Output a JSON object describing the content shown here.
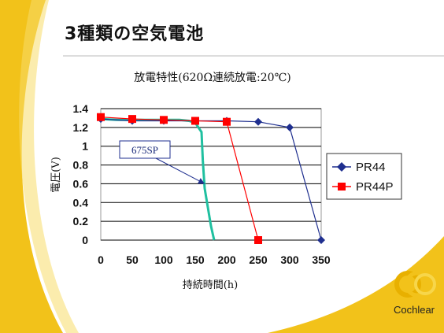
{
  "slide": {
    "title": "3種類の空気電池",
    "logo_text": "Cochlear"
  },
  "colors": {
    "accent_yellow": "#f2c21a",
    "pr44": "#1f2f8f",
    "pr44p": "#ff0000",
    "sp675": "#20c0a0",
    "callout_border": "#1f2f8f"
  },
  "chart_data": {
    "type": "line",
    "title": "放電特性(620Ω連続放電:20℃)",
    "xlabel": "持続時間(h)",
    "ylabel": "電圧(V)",
    "xlim": [
      0,
      350
    ],
    "ylim": [
      0,
      1.4
    ],
    "x_ticks": [
      "0",
      "50",
      "100",
      "150",
      "200",
      "250",
      "300",
      "350"
    ],
    "y_ticks": [
      "1.4",
      "1.2",
      "1",
      "0.8",
      "0.6",
      "0.4",
      "0.2",
      "0"
    ],
    "grid": true,
    "legend_position": "right",
    "series": [
      {
        "name": "PR44",
        "marker": "diamond",
        "color": "#1f2f8f",
        "x": [
          0,
          50,
          100,
          150,
          200,
          250,
          300,
          350
        ],
        "y": [
          1.29,
          1.27,
          1.27,
          1.27,
          1.27,
          1.26,
          1.2,
          0
        ]
      },
      {
        "name": "PR44P",
        "marker": "square",
        "color": "#ff0000",
        "x": [
          0,
          50,
          100,
          150,
          200,
          250
        ],
        "y": [
          1.31,
          1.29,
          1.28,
          1.27,
          1.26,
          0
        ]
      },
      {
        "marker": "none",
        "color": "#20c0a0",
        "x": [
          0,
          25,
          50,
          75,
          100,
          125,
          140,
          150,
          160,
          162,
          165,
          170,
          175,
          180
        ],
        "y": [
          1.29,
          1.28,
          1.28,
          1.28,
          1.28,
          1.28,
          1.27,
          1.25,
          1.15,
          0.85,
          0.55,
          0.35,
          0.15,
          0
        ]
      }
    ],
    "annotations": [
      {
        "text": "675SP",
        "target": {
          "x": 165,
          "y": 0.6
        }
      }
    ]
  }
}
